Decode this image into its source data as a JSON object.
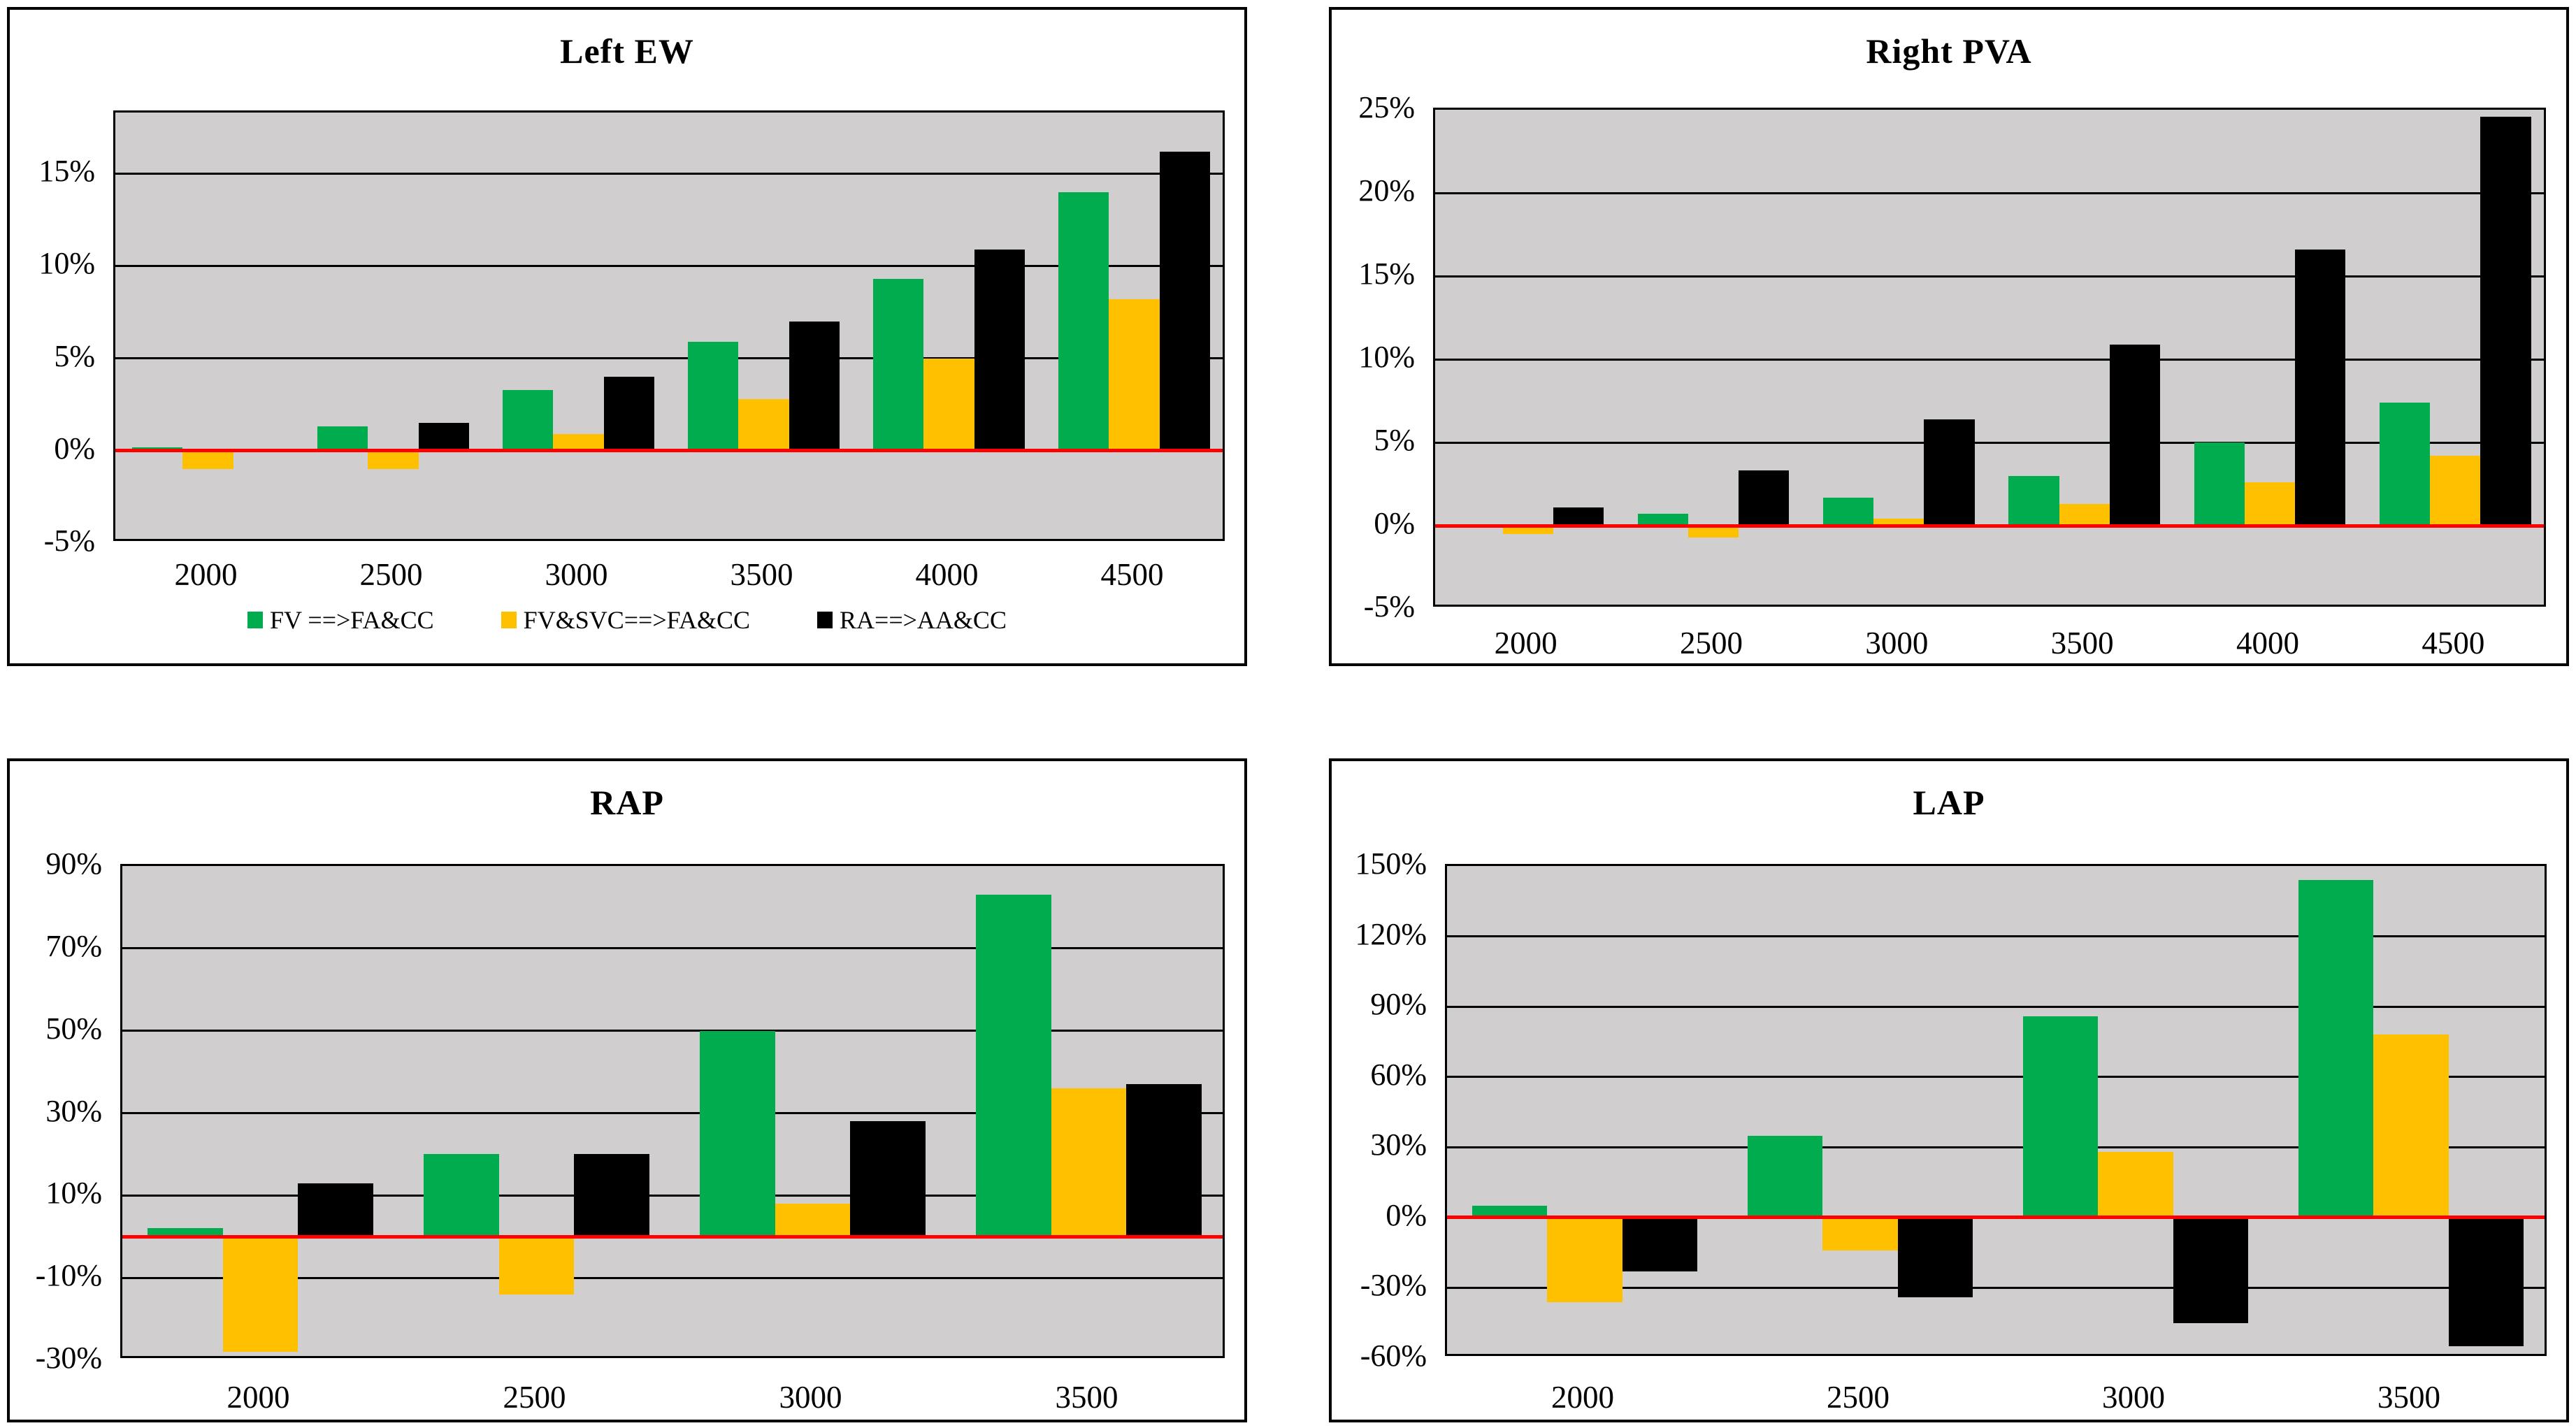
{
  "window": {
    "background": "#ffffff"
  },
  "colors": {
    "green": "#00AC4E",
    "yellow": "#FFC000",
    "black": "#000000",
    "plot_background": "#D0CECE",
    "gridline": "#000000",
    "zero_line": "#FF0000",
    "panel_border": "#000000"
  },
  "legend": {
    "items": [
      {
        "label": "FV ==>FA&CC",
        "color_key": "green"
      },
      {
        "label": "FV&SVC==>FA&CC",
        "color_key": "yellow"
      },
      {
        "label": "RA==>AA&CC",
        "color_key": "black"
      }
    ]
  },
  "chart_data": [
    {
      "id": "left-ew",
      "type": "bar",
      "title": "Left EW",
      "unit": "%",
      "categories": [
        "2000",
        "2500",
        "3000",
        "3500",
        "4000",
        "4500"
      ],
      "series": [
        {
          "name": "FV ==>FA&CC",
          "color_key": "green",
          "values": [
            0.2,
            1.3,
            3.3,
            5.9,
            9.3,
            14.0
          ]
        },
        {
          "name": "FV&SVC==>FA&CC",
          "color_key": "yellow",
          "values": [
            -1.0,
            -1.0,
            0.9,
            2.8,
            5.0,
            8.2
          ]
        },
        {
          "name": "RA==>AA&CC",
          "color_key": "black",
          "values": [
            0.0,
            1.5,
            4.0,
            7.0,
            10.9,
            16.2
          ]
        }
      ],
      "ylim": [
        -5,
        18.3
      ],
      "yticks": [
        {
          "value": 15,
          "label": "15%"
        },
        {
          "value": 10,
          "label": "10%"
        },
        {
          "value": 5,
          "label": "5%"
        },
        {
          "value": 0,
          "label": "0%"
        },
        {
          "value": -5,
          "label": "-5%"
        }
      ],
      "gridlines": [
        15,
        10,
        5
      ],
      "grid_on": true,
      "zero_line": true,
      "legend_position": "bottom",
      "show_legend": true
    },
    {
      "id": "right-pva",
      "type": "bar",
      "title": "Right PVA",
      "unit": "%",
      "categories": [
        "2000",
        "2500",
        "3000",
        "3500",
        "4000",
        "4500"
      ],
      "series": [
        {
          "name": "FV ==>FA&CC",
          "color_key": "green",
          "values": [
            0.0,
            0.7,
            1.7,
            3.0,
            5.0,
            7.4
          ]
        },
        {
          "name": "FV&SVC==>FA&CC",
          "color_key": "yellow",
          "values": [
            -0.5,
            -0.7,
            0.4,
            1.3,
            2.6,
            4.2
          ]
        },
        {
          "name": "RA==>AA&CC",
          "color_key": "black",
          "values": [
            1.1,
            3.3,
            6.4,
            10.9,
            16.6,
            24.6
          ]
        }
      ],
      "ylim": [
        -5,
        25
      ],
      "yticks": [
        {
          "value": 25,
          "label": "25%"
        },
        {
          "value": 20,
          "label": "20%"
        },
        {
          "value": 15,
          "label": "15%"
        },
        {
          "value": 10,
          "label": "10%"
        },
        {
          "value": 5,
          "label": "5%"
        },
        {
          "value": 0,
          "label": "0%"
        },
        {
          "value": -5,
          "label": "-5%"
        }
      ],
      "gridlines": [
        20,
        15,
        10,
        5
      ],
      "grid_on": true,
      "zero_line": true,
      "show_legend": false
    },
    {
      "id": "rap",
      "type": "bar",
      "title": "RAP",
      "unit": "%",
      "categories": [
        "2000",
        "2500",
        "3000",
        "3500"
      ],
      "series": [
        {
          "name": "FV ==>FA&CC",
          "color_key": "green",
          "values": [
            2,
            20,
            50,
            83
          ]
        },
        {
          "name": "FV&SVC==>FA&CC",
          "color_key": "yellow",
          "values": [
            -28,
            -14,
            8,
            36
          ]
        },
        {
          "name": "RA==>AA&CC",
          "color_key": "black",
          "values": [
            13,
            20,
            28,
            37
          ]
        }
      ],
      "ylim": [
        -30,
        90
      ],
      "yticks": [
        {
          "value": 90,
          "label": "90%"
        },
        {
          "value": 70,
          "label": "70%"
        },
        {
          "value": 50,
          "label": "50%"
        },
        {
          "value": 30,
          "label": "30%"
        },
        {
          "value": 10,
          "label": "10%"
        },
        {
          "value": -10,
          "label": "-10%"
        },
        {
          "value": -30,
          "label": "-30%"
        }
      ],
      "gridlines": [
        70,
        50,
        30,
        10,
        -10
      ],
      "grid_on": true,
      "zero_line": true,
      "show_legend": false
    },
    {
      "id": "lap",
      "type": "bar",
      "title": "LAP",
      "unit": "%",
      "categories": [
        "2000",
        "2500",
        "3000",
        "3500"
      ],
      "series": [
        {
          "name": "FV ==>FA&CC",
          "color_key": "green",
          "values": [
            5,
            35,
            86,
            144
          ]
        },
        {
          "name": "FV&SVC==>FA&CC",
          "color_key": "yellow",
          "values": [
            -36,
            -14,
            28,
            78
          ]
        },
        {
          "name": "RA==>AA&CC",
          "color_key": "black",
          "values": [
            -23,
            -34,
            -45,
            -55
          ]
        }
      ],
      "ylim": [
        -60,
        150
      ],
      "yticks": [
        {
          "value": 150,
          "label": "150%"
        },
        {
          "value": 120,
          "label": "120%"
        },
        {
          "value": 90,
          "label": "90%"
        },
        {
          "value": 60,
          "label": "60%"
        },
        {
          "value": 30,
          "label": "30%"
        },
        {
          "value": 0,
          "label": "0%"
        },
        {
          "value": -30,
          "label": "-30%"
        },
        {
          "value": -60,
          "label": "-60%"
        }
      ],
      "gridlines": [
        120,
        90,
        60,
        30,
        -30
      ],
      "grid_on": true,
      "zero_line": true,
      "show_legend": false
    }
  ]
}
